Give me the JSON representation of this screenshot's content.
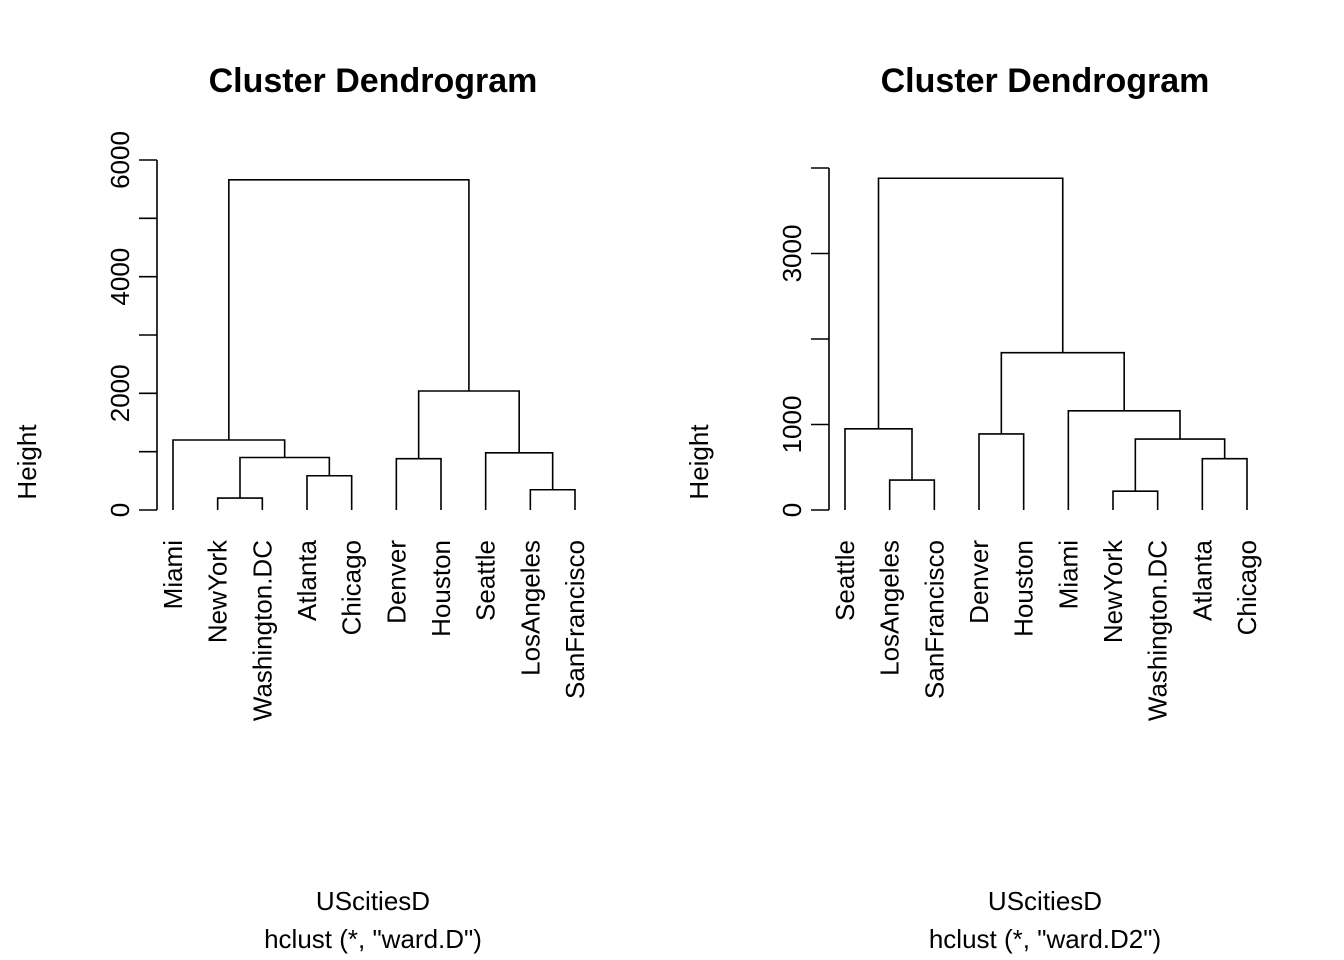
{
  "chart_data": [
    {
      "type": "dendrogram",
      "title": "Cluster Dendrogram",
      "ylabel": "Height",
      "xlabel": "UScitiesD",
      "sub": "hclust (*, \"ward.D\")",
      "ylim": [
        0,
        6000
      ],
      "yticks": [
        0,
        2000,
        4000,
        6000
      ],
      "yticks_minor": [
        1000,
        3000,
        5000
      ],
      "leaves": [
        "Miami",
        "NewYork",
        "Washington.DC",
        "Atlanta",
        "Chicago",
        "Denver",
        "Houston",
        "Seattle",
        "LosAngeles",
        "SanFrancisco"
      ],
      "merges": [
        {
          "id": "m1",
          "left": "NewYork",
          "right": "Washington.DC",
          "height": 205
        },
        {
          "id": "m2",
          "left": "Atlanta",
          "right": "Chicago",
          "height": 587
        },
        {
          "id": "m3",
          "left": "m1",
          "right": "m2",
          "height": 900
        },
        {
          "id": "m4",
          "left": "Miami",
          "right": "m3",
          "height": 1200
        },
        {
          "id": "m5",
          "left": "Denver",
          "right": "Houston",
          "height": 880
        },
        {
          "id": "m6",
          "left": "LosAngeles",
          "right": "SanFrancisco",
          "height": 347
        },
        {
          "id": "m7",
          "left": "Seattle",
          "right": "m6",
          "height": 980
        },
        {
          "id": "m8",
          "left": "m5",
          "right": "m7",
          "height": 2040
        },
        {
          "id": "m9",
          "left": "m4",
          "right": "m8",
          "height": 5660
        }
      ]
    },
    {
      "type": "dendrogram",
      "title": "Cluster Dendrogram",
      "ylabel": "Height",
      "xlabel": "UScitiesD",
      "sub": "hclust (*, \"ward.D2\")",
      "ylim": [
        0,
        4000
      ],
      "yticks": [
        0,
        1000,
        3000
      ],
      "yticks_minor": [
        2000,
        4000
      ],
      "leaves": [
        "Seattle",
        "LosAngeles",
        "SanFrancisco",
        "Denver",
        "Houston",
        "Miami",
        "NewYork",
        "Washington.DC",
        "Atlanta",
        "Chicago"
      ],
      "merges": [
        {
          "id": "m1",
          "left": "LosAngeles",
          "right": "SanFrancisco",
          "height": 350
        },
        {
          "id": "m2",
          "left": "Seattle",
          "right": "m1",
          "height": 950
        },
        {
          "id": "m3",
          "left": "Denver",
          "right": "Houston",
          "height": 890
        },
        {
          "id": "m4",
          "left": "NewYork",
          "right": "Washington.DC",
          "height": 220
        },
        {
          "id": "m5",
          "left": "Atlanta",
          "right": "Chicago",
          "height": 600
        },
        {
          "id": "m6",
          "left": "m4",
          "right": "m5",
          "height": 830
        },
        {
          "id": "m7",
          "left": "Miami",
          "right": "m6",
          "height": 1160
        },
        {
          "id": "m8",
          "left": "m3",
          "right": "m7",
          "height": 1840
        },
        {
          "id": "m9",
          "left": "m2",
          "right": "m8",
          "height": 3880
        }
      ]
    }
  ]
}
